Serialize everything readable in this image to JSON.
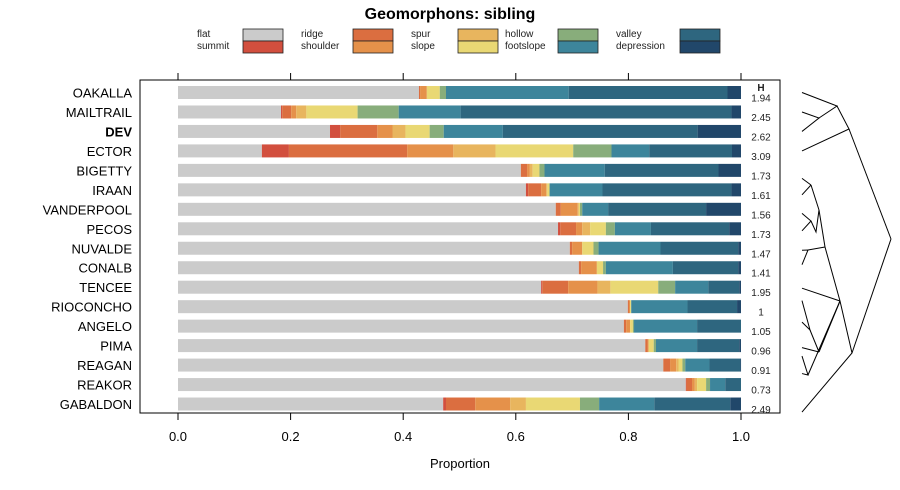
{
  "chart_data": {
    "type": "bar",
    "orientation": "horizontal-stacked",
    "title": "Geomorphons: sibling",
    "xlabel": "Proportion",
    "ylabel": "",
    "xlim": [
      0,
      1
    ],
    "xticks": [
      "0.0",
      "0.2",
      "0.4",
      "0.6",
      "0.8",
      "1.0"
    ],
    "legend_position": "top",
    "side_column_header": "H",
    "classes": [
      {
        "name": "flat",
        "color": "#CBCBCB"
      },
      {
        "name": "summit",
        "color": "#D24F3E"
      },
      {
        "name": "ridge",
        "color": "#DB6E40"
      },
      {
        "name": "shoulder",
        "color": "#E5914A"
      },
      {
        "name": "spur",
        "color": "#E8B55E"
      },
      {
        "name": "slope",
        "color": "#E9D874"
      },
      {
        "name": "hollow",
        "color": "#88AD7B"
      },
      {
        "name": "footslope",
        "color": "#3D859B"
      },
      {
        "name": "valley",
        "color": "#2E667F"
      },
      {
        "name": "depression",
        "color": "#21476A"
      }
    ],
    "categories": [
      "OAKALLA",
      "MAILTRAIL",
      "DEV",
      "ECTOR",
      "BIGETTY",
      "IRAAN",
      "VANDERPOOL",
      "PECOS",
      "NUVALDE",
      "CONALB",
      "TENCEE",
      "RIOCONCHO",
      "ANGELO",
      "PIMA",
      "REAGAN",
      "REAKOR",
      "GABALDON"
    ],
    "highlighted": "DEV",
    "H": [
      "1.94",
      "2.45",
      "2.62",
      "3.09",
      "1.73",
      "1.61",
      "1.56",
      "1.73",
      "1.47",
      "1.41",
      "1.95",
      "1",
      "1.05",
      "0.96",
      "0.91",
      "0.73",
      "2.49"
    ],
    "rows": [
      [
        0.428,
        0.0,
        0.002,
        0.012,
        0.0,
        0.023,
        0.011,
        0.218,
        0.282,
        0.024
      ],
      [
        0.183,
        0.002,
        0.016,
        0.009,
        0.018,
        0.091,
        0.073,
        0.11,
        0.481,
        0.017
      ],
      [
        0.27,
        0.018,
        0.066,
        0.027,
        0.023,
        0.043,
        0.025,
        0.105,
        0.346,
        0.077
      ],
      [
        0.149,
        0.048,
        0.21,
        0.082,
        0.075,
        0.138,
        0.068,
        0.067,
        0.147,
        0.016
      ],
      [
        0.609,
        0.0,
        0.011,
        0.005,
        0.005,
        0.012,
        0.009,
        0.107,
        0.202,
        0.04
      ],
      [
        0.618,
        0.004,
        0.023,
        0.009,
        0.002,
        0.004,
        0.0,
        0.094,
        0.229,
        0.017
      ],
      [
        0.671,
        0.0,
        0.009,
        0.03,
        0.002,
        0.002,
        0.004,
        0.046,
        0.174,
        0.062
      ],
      [
        0.675,
        0.004,
        0.028,
        0.011,
        0.014,
        0.028,
        0.016,
        0.064,
        0.139,
        0.021
      ],
      [
        0.696,
        0.0,
        0.004,
        0.018,
        0.0,
        0.02,
        0.009,
        0.11,
        0.138,
        0.005
      ],
      [
        0.712,
        0.0,
        0.004,
        0.028,
        0.0,
        0.011,
        0.005,
        0.119,
        0.116,
        0.005
      ],
      [
        0.645,
        0.002,
        0.046,
        0.052,
        0.023,
        0.085,
        0.03,
        0.059,
        0.055,
        0.003
      ],
      [
        0.799,
        0.0,
        0.002,
        0.002,
        0.0,
        0.002,
        0.0,
        0.1,
        0.088,
        0.007
      ],
      [
        0.792,
        0.0,
        0.004,
        0.007,
        0.0,
        0.005,
        0.002,
        0.112,
        0.078,
        0.0
      ],
      [
        0.83,
        0.0,
        0.004,
        0.002,
        0.0,
        0.009,
        0.004,
        0.073,
        0.075,
        0.003
      ],
      [
        0.862,
        0.0,
        0.012,
        0.011,
        0.004,
        0.007,
        0.005,
        0.043,
        0.055,
        0.001
      ],
      [
        0.902,
        0.001,
        0.01,
        0.005,
        0.004,
        0.016,
        0.007,
        0.027,
        0.028,
        0.0
      ],
      [
        0.471,
        0.005,
        0.052,
        0.062,
        0.028,
        0.096,
        0.034,
        0.098,
        0.135,
        0.019
      ]
    ],
    "dendrogram": "triangular cluster tree on right side linking rows"
  }
}
